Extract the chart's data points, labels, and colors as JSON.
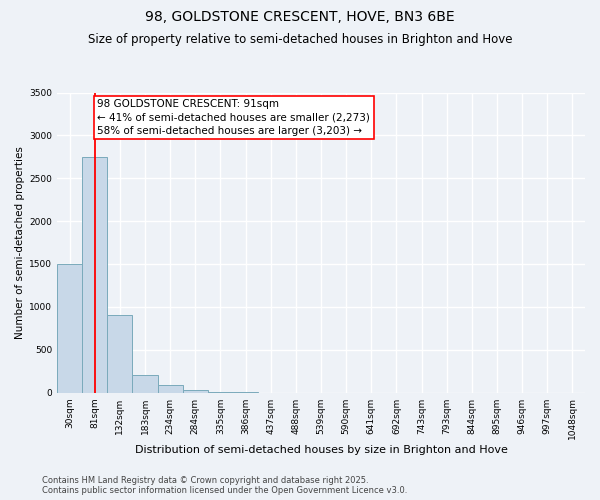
{
  "title": "98, GOLDSTONE CRESCENT, HOVE, BN3 6BE",
  "subtitle": "Size of property relative to semi-detached houses in Brighton and Hove",
  "xlabel": "Distribution of semi-detached houses by size in Brighton and Hove",
  "ylabel": "Number of semi-detached properties",
  "bar_color": "#c8d8e8",
  "bar_edge_color": "#7aaabb",
  "vline_color": "red",
  "vline_x_idx": 1,
  "annotation_text": "98 GOLDSTONE CRESCENT: 91sqm\n← 41% of semi-detached houses are smaller (2,273)\n58% of semi-detached houses are larger (3,203) →",
  "annotation_box_color": "white",
  "annotation_box_edge_color": "red",
  "categories": [
    "30sqm",
    "81sqm",
    "132sqm",
    "183sqm",
    "234sqm",
    "284sqm",
    "335sqm",
    "386sqm",
    "437sqm",
    "488sqm",
    "539sqm",
    "590sqm",
    "641sqm",
    "692sqm",
    "743sqm",
    "793sqm",
    "844sqm",
    "895sqm",
    "946sqm",
    "997sqm",
    "1048sqm"
  ],
  "values": [
    1500,
    2750,
    900,
    200,
    90,
    30,
    5,
    1,
    0,
    0,
    0,
    0,
    0,
    0,
    0,
    0,
    0,
    0,
    0,
    0,
    0
  ],
  "ylim": [
    0,
    3500
  ],
  "yticks": [
    0,
    500,
    1000,
    1500,
    2000,
    2500,
    3000,
    3500
  ],
  "footer_line1": "Contains HM Land Registry data © Crown copyright and database right 2025.",
  "footer_line2": "Contains public sector information licensed under the Open Government Licence v3.0.",
  "background_color": "#eef2f7",
  "grid_color": "#ffffff",
  "title_fontsize": 10,
  "subtitle_fontsize": 8.5,
  "ylabel_fontsize": 7.5,
  "xlabel_fontsize": 8,
  "tick_fontsize": 6.5,
  "footer_fontsize": 6,
  "annotation_fontsize": 7.5
}
